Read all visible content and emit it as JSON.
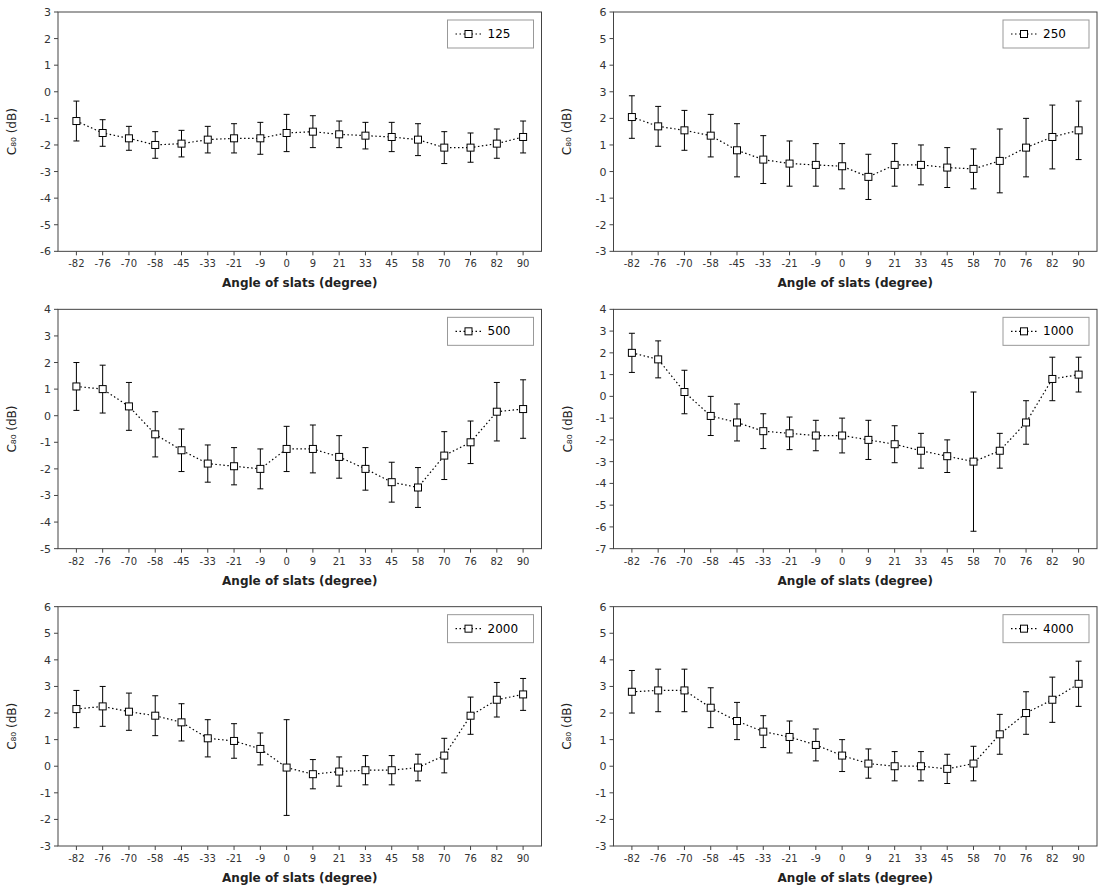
{
  "chart_data": [
    {
      "type": "line",
      "xlabel": "Angle of slats (degree)",
      "ylabel": "C₈₀ (dB)",
      "categories": [
        "-82",
        "-76",
        "-70",
        "-58",
        "-45",
        "-33",
        "-21",
        "-9",
        "0",
        "9",
        "21",
        "33",
        "45",
        "58",
        "70",
        "76",
        "82",
        "90"
      ],
      "ylim": [
        -6,
        3
      ],
      "yticks": [
        -6,
        -5,
        -4,
        -3,
        -2,
        -1,
        0,
        1,
        2,
        3
      ],
      "grid": false,
      "legend": "upper right",
      "series": [
        {
          "name": "125",
          "color": "#000000",
          "marker": "square",
          "line_style": "dotted",
          "values": [
            -1.1,
            -1.55,
            -1.75,
            -2.0,
            -1.95,
            -1.8,
            -1.75,
            -1.75,
            -1.55,
            -1.5,
            -1.6,
            -1.65,
            -1.7,
            -1.8,
            -2.1,
            -2.1,
            -1.95,
            -1.7
          ],
          "errors": [
            0.75,
            0.5,
            0.45,
            0.5,
            0.5,
            0.5,
            0.55,
            0.6,
            0.7,
            0.6,
            0.5,
            0.5,
            0.55,
            0.6,
            0.6,
            0.55,
            0.55,
            0.6
          ]
        }
      ]
    },
    {
      "type": "line",
      "xlabel": "Angle of slats (degree)",
      "ylabel": "C₈₀ (dB)",
      "categories": [
        "-82",
        "-76",
        "-70",
        "-58",
        "-45",
        "-33",
        "-21",
        "-9",
        "0",
        "9",
        "21",
        "33",
        "45",
        "58",
        "70",
        "76",
        "82",
        "90"
      ],
      "ylim": [
        -3,
        6
      ],
      "yticks": [
        -3,
        -2,
        -1,
        0,
        1,
        2,
        3,
        4,
        5,
        6
      ],
      "grid": false,
      "legend": "upper right",
      "series": [
        {
          "name": "250",
          "color": "#000000",
          "marker": "square",
          "line_style": "dotted",
          "values": [
            2.05,
            1.7,
            1.55,
            1.35,
            0.8,
            0.45,
            0.3,
            0.25,
            0.2,
            -0.2,
            0.25,
            0.25,
            0.15,
            0.1,
            0.4,
            0.9,
            1.3,
            1.55
          ],
          "errors": [
            0.8,
            0.75,
            0.75,
            0.8,
            1.0,
            0.9,
            0.85,
            0.8,
            0.85,
            0.85,
            0.8,
            0.75,
            0.75,
            0.75,
            1.2,
            1.1,
            1.2,
            1.1
          ]
        }
      ]
    },
    {
      "type": "line",
      "xlabel": "Angle of slats (degree)",
      "ylabel": "C₈₀ (dB)",
      "categories": [
        "-82",
        "-76",
        "-70",
        "-58",
        "-45",
        "-33",
        "-21",
        "-9",
        "0",
        "9",
        "21",
        "33",
        "45",
        "58",
        "70",
        "76",
        "82",
        "90"
      ],
      "ylim": [
        -5,
        4
      ],
      "yticks": [
        -5,
        -4,
        -3,
        -2,
        -1,
        0,
        1,
        2,
        3,
        4
      ],
      "grid": false,
      "legend": "upper right",
      "series": [
        {
          "name": "500",
          "color": "#000000",
          "marker": "square",
          "line_style": "dotted",
          "values": [
            1.1,
            1.0,
            0.35,
            -0.7,
            -1.3,
            -1.8,
            -1.9,
            -2.0,
            -1.25,
            -1.25,
            -1.55,
            -2.0,
            -2.5,
            -2.7,
            -1.5,
            -1.0,
            0.15,
            0.25
          ],
          "errors": [
            0.9,
            0.9,
            0.9,
            0.85,
            0.8,
            0.7,
            0.7,
            0.75,
            0.85,
            0.9,
            0.8,
            0.8,
            0.75,
            0.75,
            0.9,
            0.8,
            1.1,
            1.1
          ]
        }
      ]
    },
    {
      "type": "line",
      "xlabel": "Angle of slats (degree)",
      "ylabel": "C₈₀ (dB)",
      "categories": [
        "-82",
        "-76",
        "-70",
        "-58",
        "-45",
        "-33",
        "-21",
        "-9",
        "0",
        "9",
        "21",
        "33",
        "45",
        "58",
        "70",
        "76",
        "82",
        "90"
      ],
      "ylim": [
        -7,
        4
      ],
      "yticks": [
        -7,
        -6,
        -5,
        -4,
        -3,
        -2,
        -1,
        0,
        1,
        2,
        3,
        4
      ],
      "grid": false,
      "legend": "upper right",
      "series": [
        {
          "name": "1000",
          "color": "#000000",
          "marker": "square",
          "line_style": "dotted",
          "values": [
            2.0,
            1.7,
            0.2,
            -0.9,
            -1.2,
            -1.6,
            -1.7,
            -1.8,
            -1.8,
            -2.0,
            -2.2,
            -2.5,
            -2.75,
            -3.0,
            -2.5,
            -1.2,
            0.8,
            1.0
          ],
          "errors": [
            0.9,
            0.85,
            1.0,
            0.9,
            0.85,
            0.8,
            0.75,
            0.7,
            0.8,
            0.9,
            0.85,
            0.8,
            0.75,
            3.2,
            0.8,
            1.0,
            1.0,
            0.8
          ]
        }
      ]
    },
    {
      "type": "line",
      "xlabel": "Angle of slats (degree)",
      "ylabel": "C₈₀ (dB)",
      "categories": [
        "-82",
        "-76",
        "-70",
        "-58",
        "-45",
        "-33",
        "-21",
        "-9",
        "0",
        "9",
        "21",
        "33",
        "45",
        "58",
        "70",
        "76",
        "82",
        "90"
      ],
      "ylim": [
        -3,
        6
      ],
      "yticks": [
        -3,
        -2,
        -1,
        0,
        1,
        2,
        3,
        4,
        5,
        6
      ],
      "grid": false,
      "legend": "upper right",
      "series": [
        {
          "name": "2000",
          "color": "#000000",
          "marker": "square",
          "line_style": "dotted",
          "values": [
            2.15,
            2.25,
            2.05,
            1.9,
            1.65,
            1.05,
            0.95,
            0.65,
            -0.05,
            -0.3,
            -0.2,
            -0.15,
            -0.15,
            -0.05,
            0.4,
            1.9,
            2.5,
            2.7
          ],
          "errors": [
            0.7,
            0.75,
            0.7,
            0.75,
            0.7,
            0.7,
            0.65,
            0.6,
            1.8,
            0.55,
            0.55,
            0.55,
            0.55,
            0.5,
            0.65,
            0.7,
            0.65,
            0.6
          ]
        }
      ]
    },
    {
      "type": "line",
      "xlabel": "Angle of slats (degree)",
      "ylabel": "C₈₀ (dB)",
      "categories": [
        "-82",
        "-76",
        "-70",
        "-58",
        "-45",
        "-33",
        "-21",
        "-9",
        "0",
        "9",
        "21",
        "33",
        "45",
        "58",
        "70",
        "76",
        "82",
        "90"
      ],
      "ylim": [
        -3,
        6
      ],
      "yticks": [
        -3,
        -2,
        -1,
        0,
        1,
        2,
        3,
        4,
        5,
        6
      ],
      "grid": false,
      "legend": "upper right",
      "series": [
        {
          "name": "4000",
          "color": "#000000",
          "marker": "square",
          "line_style": "dotted",
          "values": [
            2.8,
            2.85,
            2.85,
            2.2,
            1.7,
            1.3,
            1.1,
            0.8,
            0.4,
            0.1,
            0.0,
            0.0,
            -0.1,
            0.1,
            1.2,
            2.0,
            2.5,
            3.1
          ],
          "errors": [
            0.8,
            0.8,
            0.8,
            0.75,
            0.7,
            0.6,
            0.6,
            0.6,
            0.6,
            0.55,
            0.55,
            0.55,
            0.55,
            0.65,
            0.75,
            0.8,
            0.85,
            0.85
          ]
        }
      ]
    }
  ]
}
